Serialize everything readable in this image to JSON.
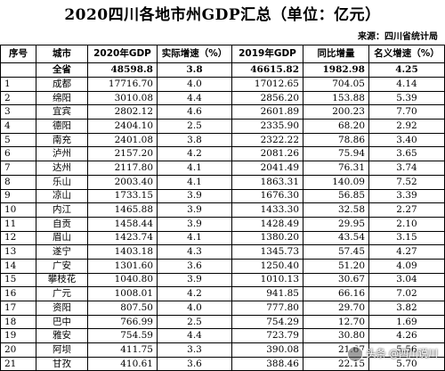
{
  "title": "2020四川各地市州GDP汇总（单位：亿元）",
  "source": "来源：四川省统计局",
  "headers": [
    "序号",
    "城市",
    "2020年GDP",
    "实际增速（%）",
    "2019年GDP",
    "同比增量",
    "名义增速（%）"
  ],
  "total": {
    "idx": "",
    "city": "全省",
    "gdp2020": "48598.8",
    "real": "3.8",
    "gdp2019": "46615.82",
    "delta": "1982.98",
    "nominal": "4.25"
  },
  "rows": [
    {
      "idx": "1",
      "city": "成都",
      "gdp2020": "17716.70",
      "real": "4.0",
      "gdp2019": "17012.65",
      "delta": "704.05",
      "nominal": "4.14"
    },
    {
      "idx": "2",
      "city": "绵阳",
      "gdp2020": "3010.08",
      "real": "4.4",
      "gdp2019": "2856.20",
      "delta": "153.88",
      "nominal": "5.39"
    },
    {
      "idx": "3",
      "city": "宜宾",
      "gdp2020": "2802.12",
      "real": "4.6",
      "gdp2019": "2601.89",
      "delta": "200.23",
      "nominal": "7.70"
    },
    {
      "idx": "4",
      "city": "德阳",
      "gdp2020": "2404.10",
      "real": "2.5",
      "gdp2019": "2335.90",
      "delta": "68.20",
      "nominal": "2.92"
    },
    {
      "idx": "5",
      "city": "南充",
      "gdp2020": "2401.08",
      "real": "3.8",
      "gdp2019": "2322.22",
      "delta": "78.86",
      "nominal": "3.40"
    },
    {
      "idx": "6",
      "city": "泸州",
      "gdp2020": "2157.20",
      "real": "4.2",
      "gdp2019": "2081.26",
      "delta": "75.94",
      "nominal": "3.65"
    },
    {
      "idx": "7",
      "city": "达州",
      "gdp2020": "2117.80",
      "real": "4.1",
      "gdp2019": "2041.49",
      "delta": "76.31",
      "nominal": "3.74"
    },
    {
      "idx": "8",
      "city": "乐山",
      "gdp2020": "2003.40",
      "real": "4.1",
      "gdp2019": "1863.31",
      "delta": "140.09",
      "nominal": "7.52"
    },
    {
      "idx": "9",
      "city": "凉山",
      "gdp2020": "1733.15",
      "real": "3.9",
      "gdp2019": "1676.30",
      "delta": "56.85",
      "nominal": "3.39"
    },
    {
      "idx": "10",
      "city": "内江",
      "gdp2020": "1465.88",
      "real": "3.9",
      "gdp2019": "1433.30",
      "delta": "32.58",
      "nominal": "2.27"
    },
    {
      "idx": "11",
      "city": "自贡",
      "gdp2020": "1458.44",
      "real": "3.9",
      "gdp2019": "1428.49",
      "delta": "29.95",
      "nominal": "2.10"
    },
    {
      "idx": "12",
      "city": "眉山",
      "gdp2020": "1423.74",
      "real": "4.1",
      "gdp2019": "1380.20",
      "delta": "43.54",
      "nominal": "3.15"
    },
    {
      "idx": "13",
      "city": "遂宁",
      "gdp2020": "1403.18",
      "real": "4.3",
      "gdp2019": "1345.73",
      "delta": "57.45",
      "nominal": "4.27"
    },
    {
      "idx": "14",
      "city": "广安",
      "gdp2020": "1301.60",
      "real": "3.6",
      "gdp2019": "1250.40",
      "delta": "51.20",
      "nominal": "4.09"
    },
    {
      "idx": "15",
      "city": "攀枝花",
      "gdp2020": "1040.80",
      "real": "3.9",
      "gdp2019": "1010.13",
      "delta": "30.67",
      "nominal": "3.04"
    },
    {
      "idx": "16",
      "city": "广元",
      "gdp2020": "1008.01",
      "real": "4.2",
      "gdp2019": "941.85",
      "delta": "66.16",
      "nominal": "7.02"
    },
    {
      "idx": "17",
      "city": "资阳",
      "gdp2020": "807.50",
      "real": "4.0",
      "gdp2019": "777.80",
      "delta": "29.70",
      "nominal": "3.82"
    },
    {
      "idx": "18",
      "city": "巴中",
      "gdp2020": "766.99",
      "real": "2.5",
      "gdp2019": "754.29",
      "delta": "12.70",
      "nominal": "1.69"
    },
    {
      "idx": "19",
      "city": "雅安",
      "gdp2020": "754.59",
      "real": "4.4",
      "gdp2019": "723.79",
      "delta": "30.80",
      "nominal": "4.26"
    },
    {
      "idx": "20",
      "city": "阿坝",
      "gdp2020": "411.75",
      "real": "3.3",
      "gdp2019": "390.08",
      "delta": "21.67",
      "nominal": "5.56"
    },
    {
      "idx": "21",
      "city": "甘孜",
      "gdp2020": "410.61",
      "real": "3.6",
      "gdp2019": "388.46",
      "delta": "22.15",
      "nominal": "5.70"
    }
  ],
  "watermark": "头条 @四川说川"
}
